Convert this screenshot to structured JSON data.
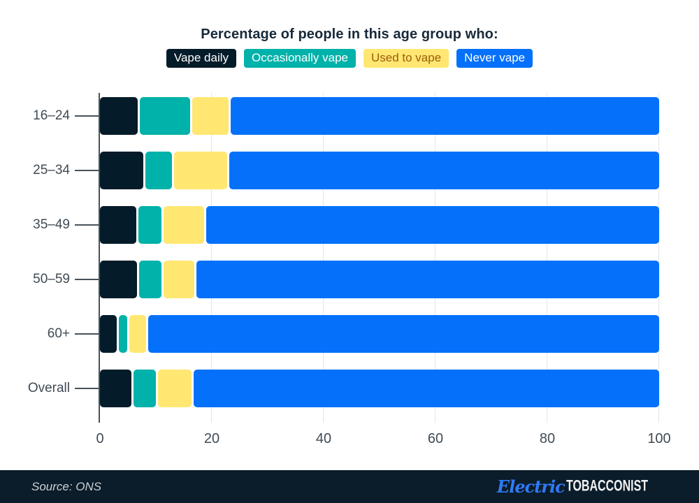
{
  "header": {
    "title": "Percentage of people in this age group who:"
  },
  "legend": [
    {
      "label": "Vape daily",
      "color": "#041b29",
      "text_color": "#ffffff"
    },
    {
      "label": "Occasionally vape",
      "color": "#00b2a9",
      "text_color": "#ffffff"
    },
    {
      "label": "Used to vape",
      "color": "#ffe772",
      "text_color": "#9e5c0a"
    },
    {
      "label": "Never vape",
      "color": "#0571fa",
      "text_color": "#ffffff"
    }
  ],
  "chart_data": {
    "type": "bar",
    "orientation": "horizontal",
    "stacked": true,
    "title": "Percentage of people in this age group who:",
    "categories": [
      "16–24",
      "25–34",
      "35–49",
      "50–59",
      "60+",
      "Overall"
    ],
    "series": [
      {
        "name": "Vape daily",
        "color": "#041b29",
        "values": [
          6.8,
          7.9,
          6.6,
          6.7,
          3.0,
          5.7
        ]
      },
      {
        "name": "Occasionally vape",
        "color": "#00b2a9",
        "values": [
          9.1,
          4.7,
          4.1,
          4.1,
          1.5,
          4.0
        ]
      },
      {
        "name": "Used to vape",
        "color": "#ffe772",
        "values": [
          6.6,
          9.6,
          7.4,
          5.5,
          3.1,
          6.1
        ]
      },
      {
        "name": "Never vape",
        "color": "#0571fa",
        "values": [
          77.5,
          77.8,
          81.9,
          83.7,
          92.4,
          84.2
        ]
      }
    ],
    "xlim": [
      0,
      100
    ],
    "x_ticks": [
      0,
      20,
      40,
      60,
      80,
      100
    ],
    "grid": true,
    "legend_position": "top",
    "unit": "percent"
  },
  "footer": {
    "source": "Source: ONS",
    "logo_script": "Electric",
    "logo_caps": "TOBACCONIST"
  }
}
